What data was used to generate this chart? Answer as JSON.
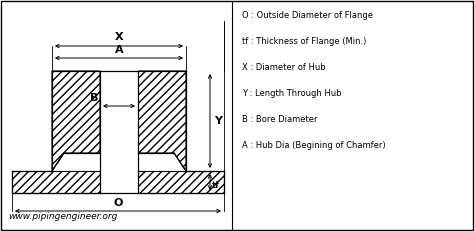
{
  "bg_color": "#ffffff",
  "line_color": "#000000",
  "fig_width": 4.74,
  "fig_height": 2.31,
  "dpi": 100,
  "legend_lines": [
    "O : Outside Diameter of Flange",
    "tf : Thickness of Flange (Min.)",
    "X : Diameter of Hub",
    "Y : Length Through Hub",
    "B : Bore Diameter",
    "A : Hub Dia (Begining of Chamfer)"
  ],
  "website": "www.pipingengineer.org",
  "labels": {
    "X": "X",
    "A": "A",
    "B": "B",
    "O": "O",
    "Y": "Y",
    "tf": "tf"
  }
}
